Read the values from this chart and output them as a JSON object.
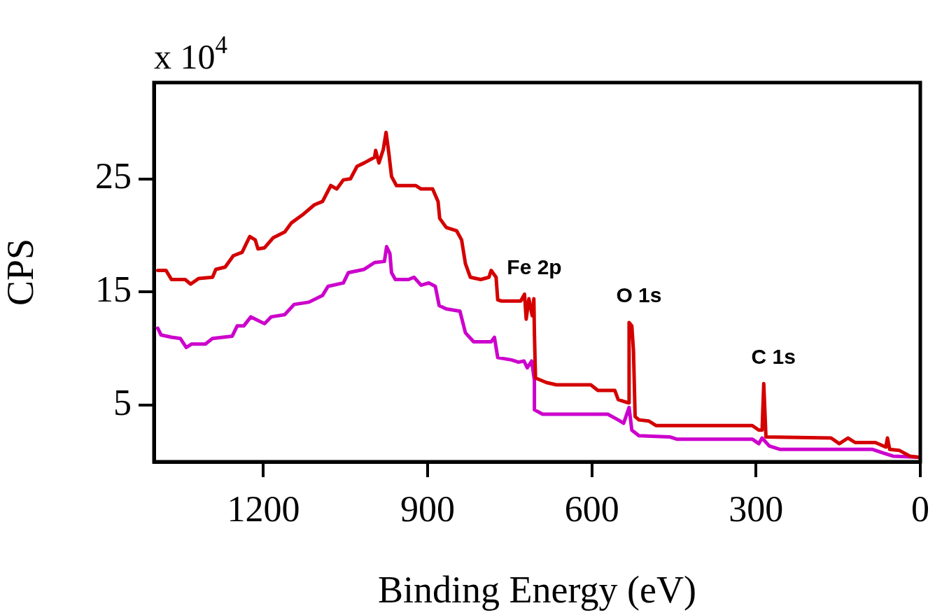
{
  "chart_data": {
    "type": "line",
    "xlabel": "Binding Energy (eV)",
    "ylabel": "CPS",
    "annotations": [
      "x 10$^{4}$",
      {
        "text": "Fe 2p",
        "x": 723,
        "y": 14.8
      },
      {
        "text": "O 1s",
        "x": 532,
        "y": 12.3
      },
      {
        "text": "C 1s",
        "x": 286,
        "y": 6.9
      }
    ],
    "xlim": [
      1400,
      0
    ],
    "ylim": [
      0,
      33.5
    ],
    "xticks": [
      1200,
      900,
      600,
      300,
      0
    ],
    "yticks": [
      5,
      15,
      25
    ],
    "grid": false,
    "legend": false,
    "marker": "none",
    "line_style": "solid",
    "series": [
      {
        "color": "#d40000",
        "x": [
          1393,
          1378,
          1368,
          1343,
          1333,
          1318,
          1293,
          1287,
          1270,
          1255,
          1239,
          1225,
          1215,
          1210,
          1198,
          1182,
          1161,
          1149,
          1129,
          1107,
          1092,
          1077,
          1066,
          1054,
          1041,
          1029,
          1016,
          997,
          995,
          989,
          981,
          976,
          971,
          966,
          957,
          922,
          912,
          891,
          881,
          878,
          866,
          847,
          838,
          831,
          822,
          803,
          788,
          784,
          775,
          772,
          765,
          730,
          723,
          720,
          715,
          709,
          706,
          705,
          703,
          683,
          665,
          602,
          589,
          558,
          552,
          533,
          532,
          527,
          524,
          521,
          514,
          496,
          483,
          307,
          295,
          289,
          286,
          282,
          163,
          148,
          132,
          119,
          82,
          63,
          60,
          56,
          38,
          19,
          3
        ],
        "values": [
          16.9,
          16.9,
          16.1,
          16.1,
          15.7,
          16.2,
          16.3,
          17.0,
          17.2,
          18.2,
          18.5,
          19.9,
          19.6,
          18.8,
          18.9,
          19.8,
          20.3,
          21.1,
          21.8,
          22.7,
          23.0,
          24.4,
          24.1,
          24.9,
          25.0,
          26.1,
          26.4,
          26.9,
          27.5,
          26.4,
          27.6,
          29.1,
          27.3,
          25.2,
          24.4,
          24.4,
          24.1,
          24.1,
          23.0,
          21.5,
          20.7,
          20.4,
          19.6,
          17.5,
          16.3,
          16.1,
          16.3,
          16.9,
          16.3,
          14.3,
          14.2,
          14.2,
          14.8,
          12.6,
          14.4,
          12.9,
          14.4,
          11.4,
          7.4,
          7.0,
          6.8,
          6.8,
          6.3,
          6.3,
          5.5,
          5.2,
          12.3,
          12.0,
          9.8,
          4.0,
          3.7,
          3.6,
          3.2,
          3.2,
          2.8,
          2.8,
          6.9,
          2.2,
          2.1,
          1.6,
          2.1,
          1.7,
          1.7,
          1.3,
          2.1,
          1.1,
          1.0,
          0.5,
          0.4
        ]
      },
      {
        "color": "#cc00cc",
        "x": [
          1393,
          1387,
          1368,
          1352,
          1341,
          1331,
          1306,
          1293,
          1257,
          1248,
          1236,
          1223,
          1198,
          1186,
          1161,
          1144,
          1117,
          1092,
          1082,
          1054,
          1045,
          1016,
          997,
          979,
          975,
          969,
          966,
          959,
          935,
          925,
          912,
          898,
          886,
          879,
          866,
          841,
          831,
          816,
          784,
          778,
          772,
          747,
          734,
          724,
          718,
          710,
          705,
          705,
          690,
          571,
          552,
          542,
          532,
          527,
          514,
          458,
          445,
          307,
          295,
          289,
          276,
          257,
          88,
          69,
          50,
          3
        ],
        "values": [
          11.8,
          11.2,
          11.0,
          10.9,
          10.1,
          10.4,
          10.4,
          10.9,
          11.1,
          12.0,
          12.0,
          12.8,
          12.2,
          12.8,
          13.0,
          13.9,
          14.1,
          14.7,
          15.5,
          15.8,
          16.7,
          17.0,
          17.6,
          17.7,
          19.0,
          18.4,
          16.7,
          16.1,
          16.1,
          16.3,
          15.6,
          15.8,
          15.5,
          13.8,
          13.5,
          13.3,
          11.4,
          10.6,
          10.6,
          11.0,
          9.2,
          9.0,
          8.8,
          8.9,
          8.3,
          8.9,
          7.2,
          4.6,
          4.2,
          4.2,
          3.7,
          3.4,
          4.8,
          2.8,
          2.3,
          2.2,
          2.0,
          2.0,
          1.6,
          2.1,
          1.4,
          1.1,
          1.1,
          0.8,
          0.5,
          0.4
        ]
      }
    ]
  }
}
